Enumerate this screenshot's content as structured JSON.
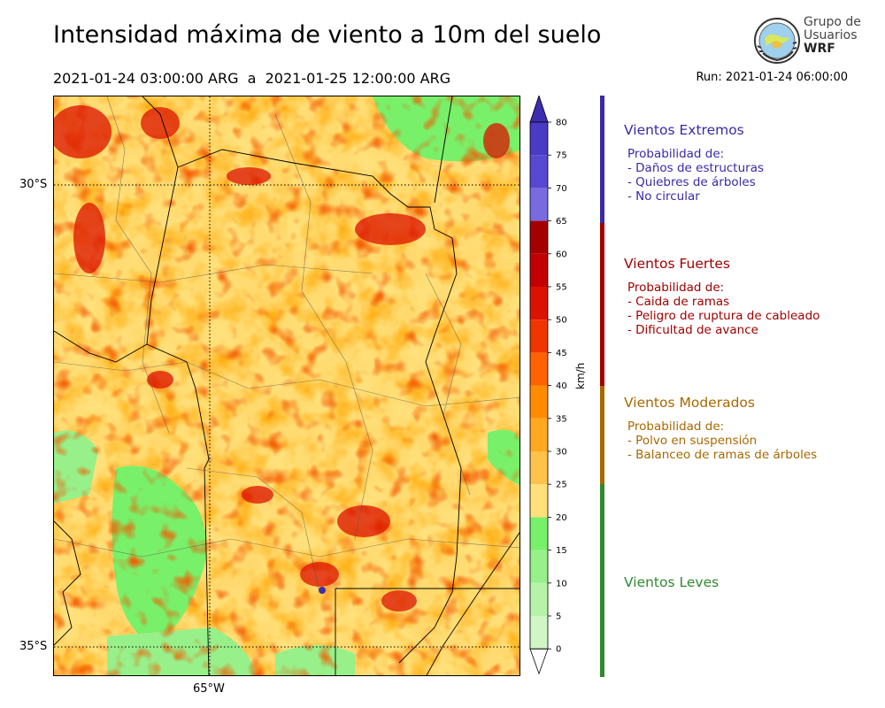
{
  "title": "Intensidad máxima de viento a 10m del suelo",
  "period": "2021-01-24 03:00:00 ARG  a  2021-01-25 12:00:00 ARG",
  "run": "Run: 2021-01-24 06:00:00",
  "logo": {
    "line1": "Grupo de",
    "line2": "Usuarios",
    "line3": "WRF"
  },
  "map": {
    "lat_labels": [
      "30°S",
      "35°S"
    ],
    "lon_labels": [
      "65°W"
    ]
  },
  "colorbar": {
    "units": "km/h",
    "ticks": [
      "80",
      "75",
      "70",
      "65",
      "60",
      "55",
      "50",
      "45",
      "40",
      "35",
      "30",
      "25",
      "20",
      "15",
      "10",
      "5",
      "0"
    ],
    "colors": [
      "#3e2cb0",
      "#4a3ac4",
      "#5848d2",
      "#7a6ae0",
      "#a50000",
      "#c20000",
      "#dc1200",
      "#f03500",
      "#ff6200",
      "#ff8c00",
      "#ffa820",
      "#ffc24a",
      "#ffe07a",
      "#79f06a",
      "#97f08a",
      "#b6f3a8",
      "#d0f6c6",
      "#e6fbe0"
    ]
  },
  "categories": [
    {
      "title": "Vientos Extremos",
      "color": "#3a2aa8",
      "lines": [
        "Probabilidad de:",
        "- Daños de estructuras",
        "- Quiebres de árboles",
        "- No circular"
      ]
    },
    {
      "title": "Vientos Fuertes",
      "color": "#a00000",
      "lines": [
        "Probabilidad de:",
        "- Caida de ramas",
        "- Peligro de ruptura de cableado",
        "- Dificultad de avance"
      ]
    },
    {
      "title": "Vientos Moderados",
      "color": "#a86800",
      "lines": [
        "Probabilidad de:",
        "- Polvo en suspensión",
        "- Balanceo de ramas de árboles"
      ]
    },
    {
      "title": "Vientos Leves",
      "color": "#2f8a2f",
      "lines": []
    }
  ]
}
